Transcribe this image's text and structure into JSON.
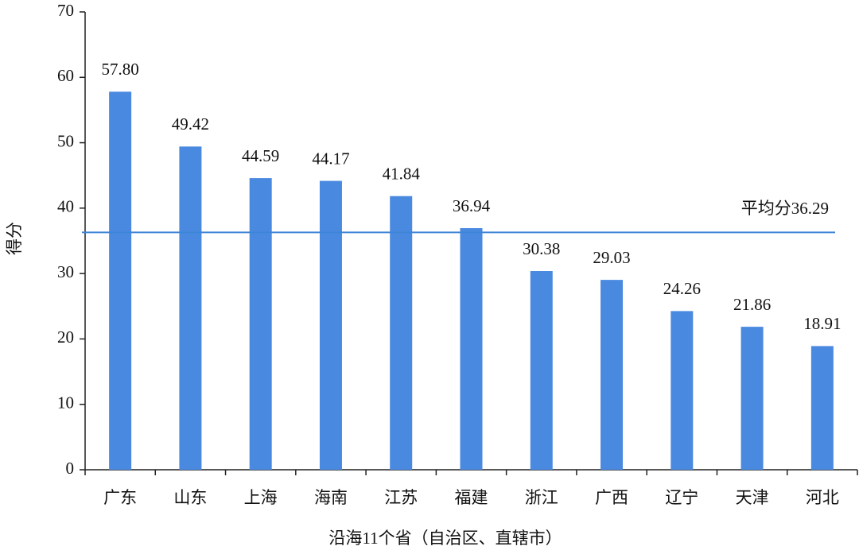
{
  "chart_data": {
    "type": "bar",
    "x_label": "沿海11个省（自治区、直辖市）",
    "y_label": "得分",
    "categories": [
      "广东",
      "山东",
      "上海",
      "海南",
      "江苏",
      "福建",
      "浙江",
      "广西",
      "辽宁",
      "天津",
      "河北"
    ],
    "values": [
      57.8,
      49.42,
      44.59,
      44.17,
      41.84,
      36.94,
      30.38,
      29.03,
      24.26,
      21.86,
      18.91
    ],
    "value_labels": [
      "57.80",
      "49.42",
      "44.59",
      "44.17",
      "41.84",
      "36.94",
      "30.38",
      "29.03",
      "24.26",
      "21.86",
      "18.91"
    ],
    "color": "#4a89e0",
    "ylim": [
      0,
      70
    ],
    "yticks": [
      0,
      10,
      20,
      30,
      40,
      50,
      60,
      70
    ],
    "average": {
      "value": 36.29,
      "label": "平均分36.29",
      "color": "#3d85d6"
    }
  }
}
